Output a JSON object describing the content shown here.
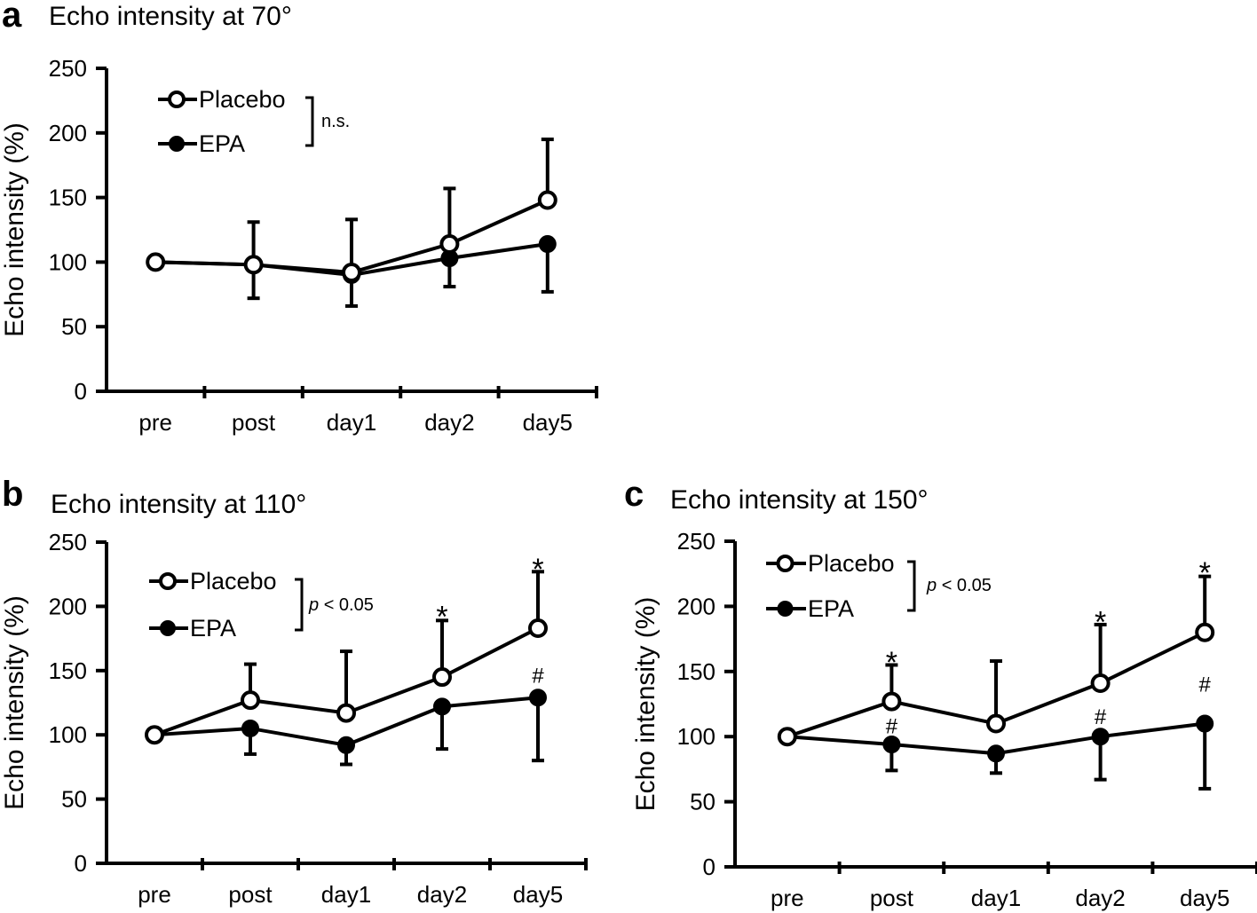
{
  "chart_data": [
    {
      "type": "line",
      "panel_letter": "a",
      "title": "Echo intensity at 70°",
      "xlabel": "",
      "ylabel": "Echo intensity (%)",
      "categories": [
        "pre",
        "post",
        "day1",
        "day2",
        "day5"
      ],
      "ylim": [
        0,
        250
      ],
      "yticks": [
        0,
        50,
        100,
        150,
        200,
        250
      ],
      "stat_label": "n.s.",
      "stat_italic_p": false,
      "series": [
        {
          "name": "Placebo",
          "marker": "open",
          "values": [
            100,
            98,
            92,
            114,
            148
          ],
          "err_up": [
            0,
            131,
            133,
            157,
            195
          ]
        },
        {
          "name": "EPA",
          "marker": "filled",
          "values": [
            100,
            98,
            90,
            103,
            114
          ],
          "err_down": [
            0,
            72,
            66,
            81,
            77
          ]
        }
      ],
      "annotations": []
    },
    {
      "type": "line",
      "panel_letter": "b",
      "title": "Echo intensity at 110°",
      "xlabel": "",
      "ylabel": "Echo intensity (%)",
      "categories": [
        "pre",
        "post",
        "day1",
        "day2",
        "day5"
      ],
      "ylim": [
        0,
        250
      ],
      "yticks": [
        0,
        50,
        100,
        150,
        200,
        250
      ],
      "stat_label": "< 0.05",
      "stat_p": "p",
      "stat_italic_p": true,
      "series": [
        {
          "name": "Placebo",
          "marker": "open",
          "values": [
            100,
            127,
            117,
            145,
            183
          ],
          "err_up": [
            0,
            155,
            165,
            189,
            227
          ]
        },
        {
          "name": "EPA",
          "marker": "filled",
          "values": [
            100,
            105,
            92,
            122,
            129
          ],
          "err_down": [
            0,
            85,
            77,
            89,
            80
          ]
        }
      ],
      "annotations": [
        {
          "text": "*",
          "category": "day2",
          "y": 195,
          "kind": "star"
        },
        {
          "text": "*",
          "category": "day5",
          "y": 232,
          "kind": "star"
        },
        {
          "text": "#",
          "category": "day5",
          "y": 146,
          "kind": "hash"
        }
      ]
    },
    {
      "type": "line",
      "panel_letter": "c",
      "title": "Echo intensity at 150°",
      "xlabel": "",
      "ylabel": "Echo intensity (%)",
      "categories": [
        "pre",
        "post",
        "day1",
        "day2",
        "day5"
      ],
      "ylim": [
        0,
        250
      ],
      "yticks": [
        0,
        50,
        100,
        150,
        200,
        250
      ],
      "stat_label": "< 0.05",
      "stat_p": "p",
      "stat_italic_p": true,
      "series": [
        {
          "name": "Placebo",
          "marker": "open",
          "values": [
            100,
            127,
            110,
            141,
            180
          ],
          "err_up": [
            0,
            155,
            158,
            186,
            223
          ]
        },
        {
          "name": "EPA",
          "marker": "filled",
          "values": [
            100,
            94,
            87,
            100,
            110
          ],
          "err_down": [
            0,
            74,
            72,
            67,
            60
          ]
        }
      ],
      "annotations": [
        {
          "text": "*",
          "category": "post",
          "y": 160,
          "kind": "star"
        },
        {
          "text": "#",
          "category": "post",
          "y": 108,
          "kind": "hash"
        },
        {
          "text": "*",
          "category": "day2",
          "y": 191,
          "kind": "star"
        },
        {
          "text": "#",
          "category": "day2",
          "y": 115,
          "kind": "hash"
        },
        {
          "text": "*",
          "category": "day5",
          "y": 229,
          "kind": "star"
        },
        {
          "text": "#",
          "category": "day5",
          "y": 140,
          "kind": "hash"
        }
      ]
    }
  ]
}
